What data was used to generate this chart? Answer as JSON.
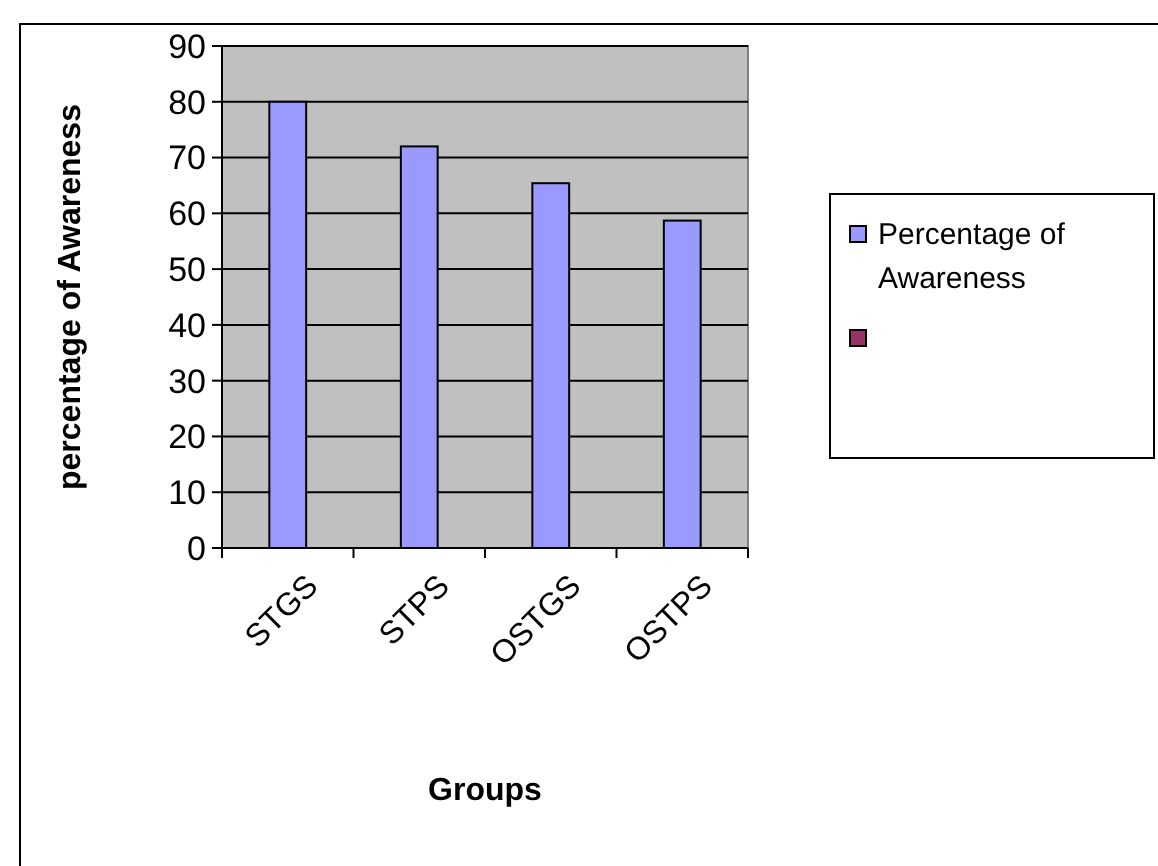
{
  "chart_data": {
    "type": "bar",
    "xlabel": "Groups",
    "ylabel": "percentage of Awareness",
    "categories": [
      "STGS",
      "STPS",
      "OSTGS",
      "OSTPS"
    ],
    "series": [
      {
        "name": "Percentage of Awareness",
        "color": "#9999ff",
        "values": [
          80,
          72,
          65.4,
          58.7
        ]
      },
      {
        "color": "#993366",
        "values": [
          null,
          null,
          null,
          null
        ]
      }
    ],
    "ylim": [
      0,
      90
    ],
    "yticks": [
      0,
      10,
      20,
      30,
      40,
      50,
      60,
      70,
      80,
      90
    ],
    "grid": "y",
    "legend": "right"
  }
}
